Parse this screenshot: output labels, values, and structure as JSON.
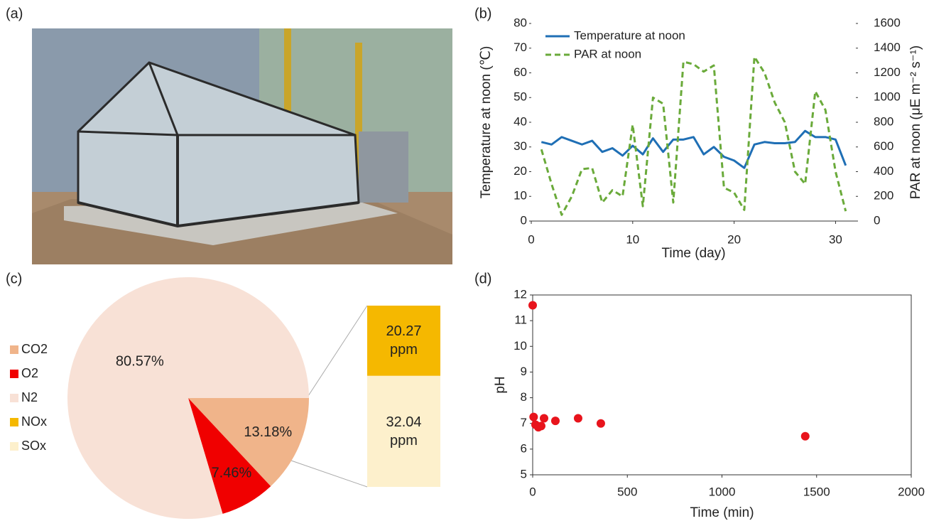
{
  "panel_labels": [
    "(a)",
    "(b)",
    "(c)",
    "(d)"
  ],
  "chart_data": [
    {
      "type": "line",
      "x": [
        1,
        2,
        3,
        4,
        5,
        6,
        7,
        8,
        9,
        10,
        11,
        12,
        13,
        14,
        15,
        16,
        17,
        18,
        19,
        20,
        21,
        22,
        23,
        24,
        25,
        26,
        27,
        28,
        29,
        30,
        31
      ],
      "series": [
        {
          "name": "Temperature at noon",
          "color": "#1f6fb5",
          "dashed": false,
          "values": [
            32,
            31,
            34,
            32.5,
            31,
            32.5,
            28,
            29.5,
            26.5,
            30.5,
            27,
            33.5,
            28,
            33,
            33,
            34,
            27,
            30,
            26,
            24.5,
            21.5,
            31,
            32,
            31.5,
            31.5,
            32,
            36.5,
            34,
            34,
            33,
            22.5
          ]
        },
        {
          "name": "PAR at noon",
          "color": "#6aaa3a",
          "dashed": true,
          "axis": "y2",
          "values": [
            580,
            300,
            50,
            200,
            420,
            430,
            150,
            250,
            200,
            780,
            120,
            1000,
            950,
            150,
            1290,
            1270,
            1210,
            1260,
            270,
            230,
            90,
            1330,
            1200,
            960,
            800,
            400,
            300,
            1050,
            900,
            400,
            80
          ]
        }
      ],
      "xlim": [
        0,
        32
      ],
      "xticks": [
        0,
        10,
        20,
        30
      ],
      "ylim": [
        0,
        80
      ],
      "yticks": [
        0,
        10,
        20,
        30,
        40,
        50,
        60,
        70,
        80
      ],
      "y2lim": [
        0,
        1600
      ],
      "y2ticks": [
        0,
        200,
        400,
        600,
        800,
        1000,
        1200,
        1400,
        1600
      ],
      "x_label": "Time (day)",
      "y_label": "Temperature at noon (℃)",
      "y2_label": "PAR at noon (μE m⁻² s⁻¹)",
      "legend": "upper left"
    },
    {
      "type": "pie",
      "categories": [
        "CO2",
        "O2",
        "N2",
        "NOx",
        "SOx"
      ],
      "values": [
        13.18,
        7.46,
        80.57,
        20.27,
        32.04
      ],
      "value_labels": [
        "13.18%",
        "7.46%",
        "80.57%",
        "20.27 ppm",
        "32.04 ppm"
      ],
      "colors": [
        "#f0b48a",
        "#f00000",
        "#f8e1d6",
        "#f5b800",
        "#fdf0cc"
      ],
      "pie_count": 3,
      "legend": "left"
    },
    {
      "type": "scatter",
      "x": [
        0,
        5,
        15,
        30,
        45,
        60,
        120,
        240,
        360,
        1440
      ],
      "values": [
        11.6,
        7.25,
        6.95,
        6.85,
        6.9,
        7.2,
        7.1,
        7.2,
        7.0,
        6.5
      ],
      "color": "#e8141c",
      "xlim": [
        0,
        2000
      ],
      "xticks": [
        0,
        500,
        1000,
        1500,
        2000
      ],
      "ylim": [
        5,
        12
      ],
      "yticks": [
        5,
        6,
        7,
        8,
        9,
        10,
        11,
        12
      ],
      "x_label": "Time (min)",
      "y_label": "pH"
    }
  ]
}
